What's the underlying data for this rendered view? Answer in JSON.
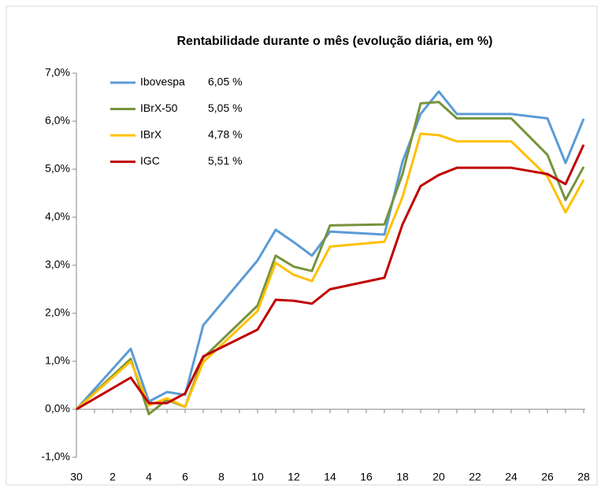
{
  "chart_data": {
    "type": "line",
    "title": "Rentabilidade durante o mês (evolução diária, em %)",
    "x": [
      0,
      3,
      4,
      5,
      6,
      7,
      10,
      11,
      12,
      13,
      14,
      17,
      18,
      19,
      20,
      21,
      24,
      26,
      27,
      28
    ],
    "xlim": [
      0,
      28
    ],
    "xticks": [
      {
        "value": 0,
        "label": "30"
      },
      2,
      4,
      6,
      8,
      10,
      12,
      14,
      16,
      18,
      20,
      22,
      24,
      26,
      28
    ],
    "ylim": [
      -1,
      7
    ],
    "yticks": [
      {
        "value": -1,
        "label": "-1,0%"
      },
      {
        "value": 0,
        "label": "0,0%"
      },
      {
        "value": 1,
        "label": "1,0%"
      },
      {
        "value": 2,
        "label": "2,0%"
      },
      {
        "value": 3,
        "label": "3,0%"
      },
      {
        "value": 4,
        "label": "4,0%"
      },
      {
        "value": 5,
        "label": "5,0%"
      },
      {
        "value": 6,
        "label": "6,0%"
      },
      {
        "value": 7,
        "label": "7,0%"
      }
    ],
    "series": [
      {
        "name": "Ibovespa",
        "color": "#5b9bd5",
        "legend_label": "6,05 %",
        "values": [
          0,
          1.26,
          0.16,
          0.36,
          0.3,
          1.75,
          3.1,
          3.74,
          3.48,
          3.2,
          3.7,
          3.64,
          5.16,
          6.15,
          6.62,
          6.15,
          6.15,
          6.06,
          5.13,
          6.05
        ]
      },
      {
        "name": "IBrX-50",
        "color": "#77933c",
        "legend_label": "5,05 %",
        "values": [
          0,
          1.05,
          -0.1,
          0.2,
          0.05,
          1.07,
          2.16,
          3.2,
          2.97,
          2.88,
          3.83,
          3.85,
          4.9,
          6.37,
          6.4,
          6.06,
          6.06,
          5.3,
          4.36,
          5.05
        ]
      },
      {
        "name": "IBrX",
        "color": "#ffc000",
        "legend_label": "4,78 %",
        "values": [
          0,
          1.0,
          0.08,
          0.23,
          0.05,
          0.98,
          2.05,
          3.05,
          2.8,
          2.67,
          3.39,
          3.49,
          4.42,
          5.74,
          5.71,
          5.58,
          5.58,
          4.85,
          4.1,
          4.78
        ]
      },
      {
        "name": "IGC",
        "color": "#c00000",
        "legend_label": "5,51 %",
        "values": [
          0,
          0.66,
          0.13,
          0.13,
          0.33,
          1.1,
          1.66,
          2.28,
          2.26,
          2.2,
          2.5,
          2.74,
          3.85,
          4.65,
          4.88,
          5.03,
          5.03,
          4.9,
          4.69,
          5.51
        ]
      }
    ]
  }
}
